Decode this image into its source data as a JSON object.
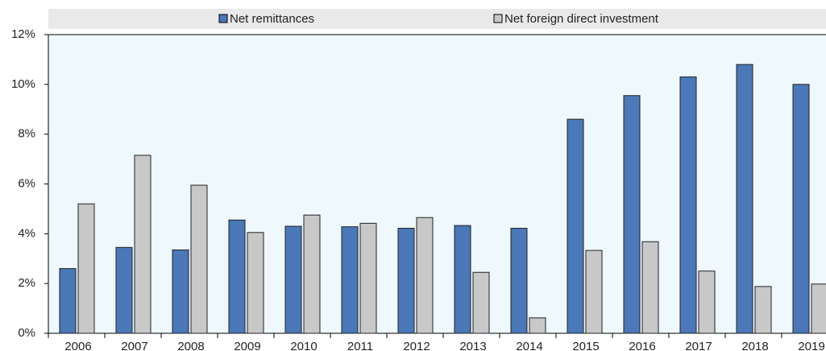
{
  "chart_data": {
    "type": "bar",
    "categories": [
      "2006",
      "2007",
      "2008",
      "2009",
      "2010",
      "2011",
      "2012",
      "2013",
      "2014",
      "2015",
      "2016",
      "2017",
      "2018",
      "2019"
    ],
    "series": [
      {
        "name": "Net remittances",
        "color": "#4a78b8",
        "values": [
          2.6,
          3.45,
          3.35,
          4.55,
          4.3,
          4.28,
          4.22,
          4.33,
          4.22,
          8.6,
          9.55,
          10.3,
          10.8,
          10.0
        ]
      },
      {
        "name": "Net foreign direct investment",
        "color": "#c8c8c8",
        "values": [
          5.2,
          7.15,
          5.95,
          4.05,
          4.75,
          4.42,
          4.65,
          2.45,
          0.62,
          3.33,
          3.68,
          2.5,
          1.88,
          1.98
        ]
      }
    ],
    "ylim": [
      0,
      12
    ],
    "yticks": [
      {
        "value": 0,
        "label": "0%"
      },
      {
        "value": 2,
        "label": "2%"
      },
      {
        "value": 4,
        "label": "4%"
      },
      {
        "value": 6,
        "label": "6%"
      },
      {
        "value": 8,
        "label": "8%"
      },
      {
        "value": 10,
        "label": "10%"
      },
      {
        "value": 12,
        "label": "12%"
      }
    ],
    "legend": "top"
  }
}
